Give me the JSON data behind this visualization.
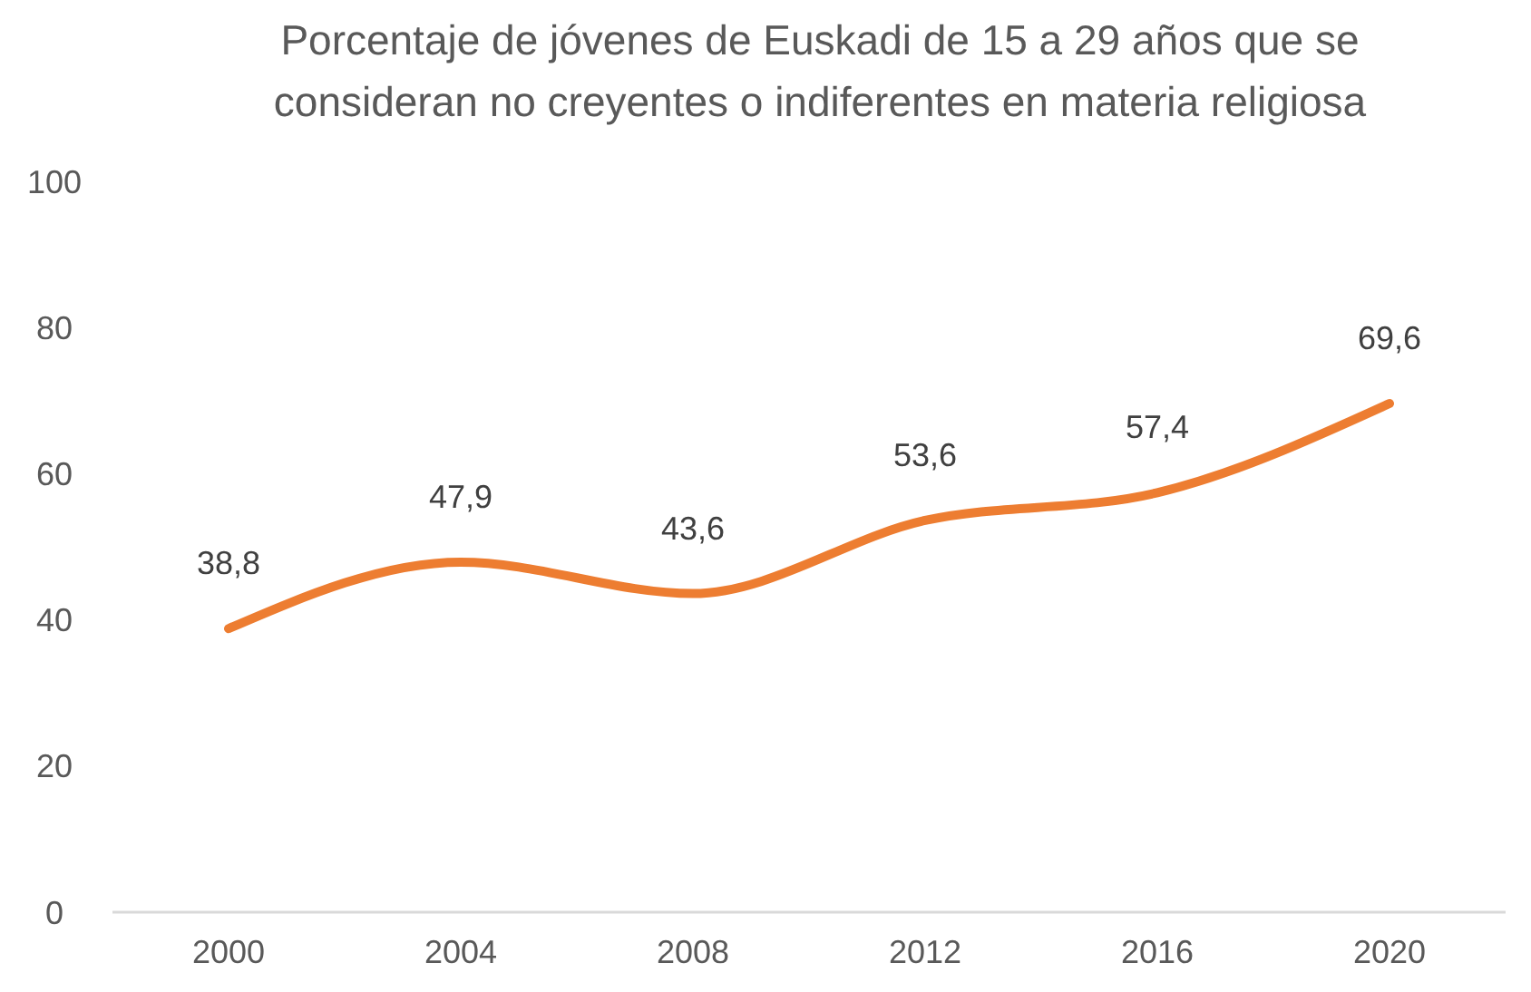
{
  "chart_data": {
    "type": "line",
    "title": "Porcentaje de jóvenes de Euskadi de 15 a 29 años que se consideran no creyentes o indiferentes en materia religiosa",
    "categories": [
      "2000",
      "2004",
      "2008",
      "2012",
      "2016",
      "2020"
    ],
    "series": [
      {
        "color": "#ed7d31",
        "values": [
          38.8,
          47.9,
          43.6,
          53.6,
          57.4,
          69.6
        ],
        "value_labels": [
          "38,8",
          "47,9",
          "43,6",
          "53,6",
          "57,4",
          "69,6"
        ]
      }
    ],
    "ylim": [
      0,
      100
    ],
    "yticks": [
      0,
      20,
      40,
      60,
      80,
      100
    ],
    "marker": "none",
    "line_style": "solid"
  }
}
